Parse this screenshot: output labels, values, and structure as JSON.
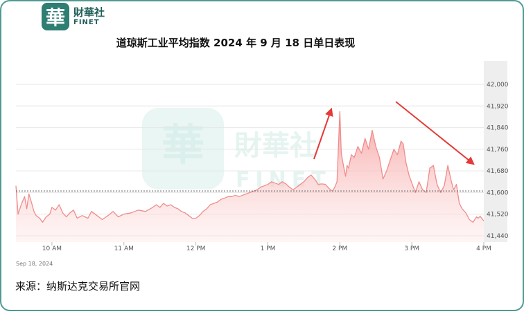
{
  "brand": {
    "badge_char": "華",
    "name_cn": "財華社",
    "name_en": "FINET"
  },
  "watermark": {
    "badge_char": "華",
    "name_cn": "財華社",
    "name_en": "FINET"
  },
  "title": "道琼斯工业平均指数 2024 年 9 月 18 日单日表现",
  "source": "来源：纳斯达克交易所官网",
  "colors": {
    "line": "#f08c8c",
    "fill_top": "#f7a1a1",
    "fill_bottom": "#fde3e3",
    "arrow": "#e53935",
    "frame": "#4f9a93",
    "after_hours_band": "#eeeeee"
  },
  "chart_data": {
    "type": "area",
    "date_label": "Sep 18, 2024",
    "x_ticks": [
      {
        "t": 10,
        "label": "10 AM"
      },
      {
        "t": 11,
        "label": "11 AM"
      },
      {
        "t": 12,
        "label": "12 PM"
      },
      {
        "t": 13,
        "label": "1 PM"
      },
      {
        "t": 14,
        "label": "2 PM"
      },
      {
        "t": 15,
        "label": "3 PM"
      },
      {
        "t": 16,
        "label": "4 PM"
      }
    ],
    "xlim": [
      9.5,
      16
    ],
    "ylim": [
      41440,
      42000
    ],
    "y_ticks": [
      {
        "v": 42000,
        "label": "42,000"
      },
      {
        "v": 41920,
        "label": "41,920"
      },
      {
        "v": 41840,
        "label": "41,840"
      },
      {
        "v": 41760,
        "label": "41,760"
      },
      {
        "v": 41680,
        "label": "41,680"
      },
      {
        "v": 41600,
        "label": "41,600"
      },
      {
        "v": 41520,
        "label": "41,520"
      },
      {
        "v": 41440,
        "label": "41,440"
      }
    ],
    "previous_close": 41606,
    "points": [
      [
        9.5,
        41625
      ],
      [
        9.53,
        41520
      ],
      [
        9.58,
        41560
      ],
      [
        9.62,
        41585
      ],
      [
        9.65,
        41540
      ],
      [
        9.68,
        41595
      ],
      [
        9.72,
        41560
      ],
      [
        9.75,
        41530
      ],
      [
        9.78,
        41515
      ],
      [
        9.83,
        41505
      ],
      [
        9.87,
        41490
      ],
      [
        9.92,
        41510
      ],
      [
        9.97,
        41520
      ],
      [
        10.0,
        41545
      ],
      [
        10.05,
        41535
      ],
      [
        10.1,
        41555
      ],
      [
        10.15,
        41525
      ],
      [
        10.2,
        41510
      ],
      [
        10.25,
        41525
      ],
      [
        10.3,
        41535
      ],
      [
        10.35,
        41505
      ],
      [
        10.42,
        41515
      ],
      [
        10.5,
        41505
      ],
      [
        10.55,
        41530
      ],
      [
        10.6,
        41520
      ],
      [
        10.7,
        41500
      ],
      [
        10.78,
        41515
      ],
      [
        10.85,
        41530
      ],
      [
        10.92,
        41510
      ],
      [
        11.0,
        41520
      ],
      [
        11.1,
        41525
      ],
      [
        11.2,
        41535
      ],
      [
        11.3,
        41530
      ],
      [
        11.4,
        41545
      ],
      [
        11.45,
        41555
      ],
      [
        11.5,
        41545
      ],
      [
        11.55,
        41560
      ],
      [
        11.6,
        41550
      ],
      [
        11.65,
        41555
      ],
      [
        11.7,
        41545
      ],
      [
        11.75,
        41540
      ],
      [
        11.8,
        41530
      ],
      [
        11.85,
        41525
      ],
      [
        11.9,
        41515
      ],
      [
        11.95,
        41505
      ],
      [
        12.0,
        41505
      ],
      [
        12.05,
        41515
      ],
      [
        12.1,
        41530
      ],
      [
        12.15,
        41540
      ],
      [
        12.2,
        41555
      ],
      [
        12.25,
        41560
      ],
      [
        12.3,
        41565
      ],
      [
        12.35,
        41575
      ],
      [
        12.4,
        41580
      ],
      [
        12.45,
        41585
      ],
      [
        12.5,
        41585
      ],
      [
        12.55,
        41590
      ],
      [
        12.6,
        41585
      ],
      [
        12.65,
        41590
      ],
      [
        12.7,
        41595
      ],
      [
        12.75,
        41600
      ],
      [
        12.8,
        41605
      ],
      [
        12.85,
        41610
      ],
      [
        12.9,
        41620
      ],
      [
        12.95,
        41625
      ],
      [
        13.0,
        41630
      ],
      [
        13.05,
        41640
      ],
      [
        13.1,
        41635
      ],
      [
        13.15,
        41630
      ],
      [
        13.2,
        41640
      ],
      [
        13.25,
        41632
      ],
      [
        13.3,
        41620
      ],
      [
        13.35,
        41610
      ],
      [
        13.4,
        41620
      ],
      [
        13.45,
        41630
      ],
      [
        13.5,
        41640
      ],
      [
        13.55,
        41655
      ],
      [
        13.6,
        41665
      ],
      [
        13.65,
        41650
      ],
      [
        13.7,
        41630
      ],
      [
        13.75,
        41632
      ],
      [
        13.8,
        41630
      ],
      [
        13.85,
        41615
      ],
      [
        13.9,
        41605
      ],
      [
        13.93,
        41620
      ],
      [
        13.96,
        41640
      ],
      [
        14.0,
        41900
      ],
      [
        14.02,
        41745
      ],
      [
        14.05,
        41700
      ],
      [
        14.08,
        41660
      ],
      [
        14.1,
        41700
      ],
      [
        14.12,
        41690
      ],
      [
        14.16,
        41740
      ],
      [
        14.2,
        41730
      ],
      [
        14.25,
        41770
      ],
      [
        14.3,
        41745
      ],
      [
        14.35,
        41800
      ],
      [
        14.4,
        41760
      ],
      [
        14.45,
        41830
      ],
      [
        14.5,
        41770
      ],
      [
        14.55,
        41730
      ],
      [
        14.6,
        41650
      ],
      [
        14.65,
        41680
      ],
      [
        14.7,
        41720
      ],
      [
        14.75,
        41760
      ],
      [
        14.8,
        41740
      ],
      [
        14.85,
        41790
      ],
      [
        14.88,
        41780
      ],
      [
        14.92,
        41710
      ],
      [
        14.96,
        41665
      ],
      [
        15.0,
        41635
      ],
      [
        15.05,
        41600
      ],
      [
        15.1,
        41640
      ],
      [
        15.15,
        41610
      ],
      [
        15.2,
        41600
      ],
      [
        15.25,
        41690
      ],
      [
        15.3,
        41700
      ],
      [
        15.35,
        41630
      ],
      [
        15.4,
        41600
      ],
      [
        15.45,
        41625
      ],
      [
        15.5,
        41700
      ],
      [
        15.55,
        41640
      ],
      [
        15.58,
        41610
      ],
      [
        15.62,
        41630
      ],
      [
        15.66,
        41560
      ],
      [
        15.7,
        41540
      ],
      [
        15.75,
        41525
      ],
      [
        15.8,
        41500
      ],
      [
        15.85,
        41490
      ],
      [
        15.9,
        41510
      ],
      [
        15.92,
        41505
      ],
      [
        15.95,
        41512
      ],
      [
        16.0,
        41495
      ]
    ]
  }
}
